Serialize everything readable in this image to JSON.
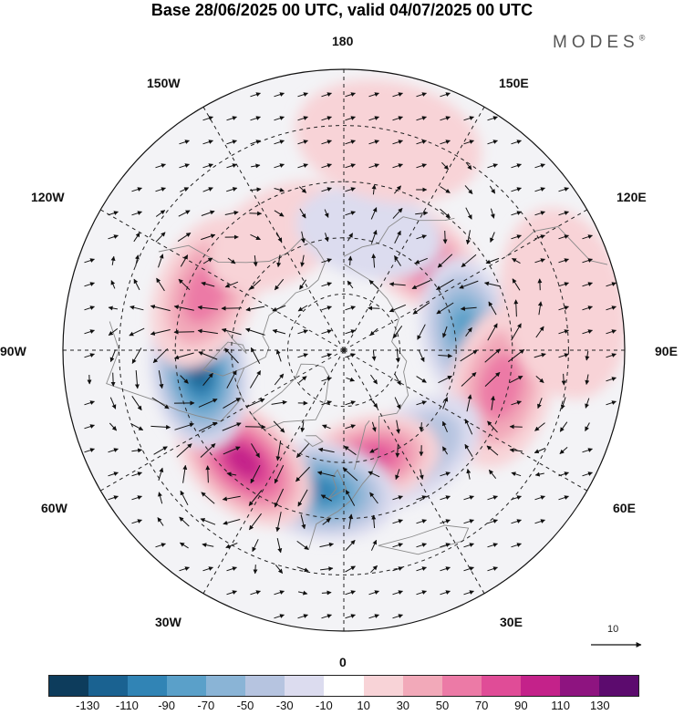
{
  "title": "Base 28/06/2025 00 UTC, valid 04/07/2025 00 UTC",
  "brand": "MODES",
  "brand_mark": "®",
  "longitude_labels": {
    "lon_180": "180",
    "lon_150e": "150E",
    "lon_120e": "120E",
    "lon_90e": "90E",
    "lon_60e": "60E",
    "lon_30e": "30E",
    "lon_0": "0",
    "lon_30w": "30W",
    "lon_60w": "60W",
    "lon_90w": "90W",
    "lon_120w": "120W",
    "lon_150w": "150W"
  },
  "vector_scale_label": "10",
  "colorbar": {
    "colors": [
      "#0d3c5c",
      "#1a6291",
      "#3184b5",
      "#5aa0c9",
      "#8ab4d6",
      "#b6c4e0",
      "#dcdcef",
      "#ffffff",
      "#f8d3d7",
      "#f2a9b9",
      "#ec7aa6",
      "#e04c97",
      "#c4228a",
      "#8e1480",
      "#5c0b6e"
    ],
    "ticks": [
      "-130",
      "-110",
      "-90",
      "-70",
      "-50",
      "-30",
      "-10",
      "10",
      "30",
      "50",
      "70",
      "90",
      "110",
      "130"
    ]
  },
  "anomaly_centers": [
    {
      "lon": 142,
      "lat": 58,
      "value": 80
    },
    {
      "lon": 99,
      "lat": 57,
      "value": -95
    },
    {
      "lon": 77,
      "lat": 47,
      "value": 70
    },
    {
      "lon": 35,
      "lat": 57,
      "value": -60
    },
    {
      "lon": 13,
      "lat": 60,
      "value": 90
    },
    {
      "lon": -10,
      "lat": 52,
      "value": -105
    },
    {
      "lon": -42,
      "lat": 50,
      "value": 110
    },
    {
      "lon": -82,
      "lat": 51,
      "value": -120
    },
    {
      "lon": -113,
      "lat": 50,
      "value": 75
    },
    {
      "lon": -150,
      "lat": 55,
      "value": 30
    },
    {
      "lon": 168,
      "lat": 58,
      "value": -25
    },
    {
      "lon": 168,
      "lat": 33,
      "value": 20
    },
    {
      "lon": 102,
      "lat": 30,
      "value": 20
    }
  ]
}
